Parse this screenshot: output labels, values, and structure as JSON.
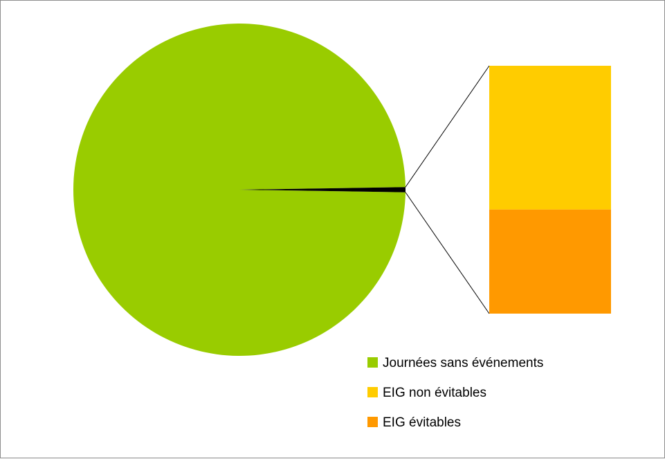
{
  "chart_data": {
    "type": "pie",
    "subtype": "bar-of-pie",
    "title": "",
    "slices": [
      {
        "name": "Journées sans événements",
        "value": 99.5,
        "color": "#99cc00"
      },
      {
        "name": "EIG non évitables",
        "value": 0.29,
        "color": "#ffcc00"
      },
      {
        "name": "EIG évitables",
        "value": 0.21,
        "color": "#ff9900"
      }
    ],
    "secondary_bar_series": [
      "EIG non évitables",
      "EIG évitables"
    ],
    "combined_slice_color": "#000000",
    "legend": {
      "position": "bottom-right",
      "items": [
        {
          "label": "Journées sans événements",
          "color": "#99cc00"
        },
        {
          "label": "EIG non évitables",
          "color": "#ffcc00"
        },
        {
          "label": "EIG évitables",
          "color": "#ff9900"
        }
      ]
    }
  }
}
